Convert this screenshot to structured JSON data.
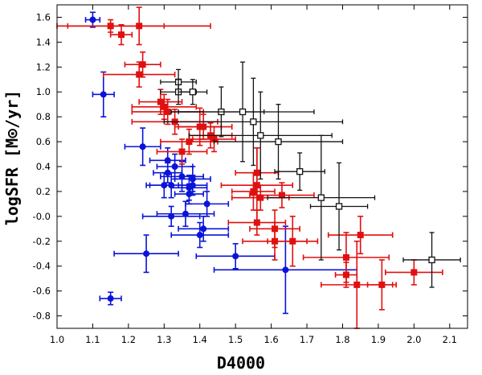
{
  "chart_data": {
    "type": "scatter",
    "xlabel": "D4000",
    "ylabel": "logSFR [M⊙/yr]",
    "xlim": [
      1.0,
      2.15
    ],
    "ylim": [
      -0.9,
      1.7
    ],
    "xticks": [
      "1.0",
      "1.1",
      "1.2",
      "1.3",
      "1.4",
      "1.5",
      "1.6",
      "1.7",
      "1.8",
      "1.9",
      "2.0",
      "2.1"
    ],
    "yticks": [
      "1.6",
      "1.4",
      "1.2",
      "1.0",
      "0.8",
      "0.6",
      "0.4",
      "0.2",
      "-0.0",
      "-0.2",
      "-0.4",
      "-0.6",
      "-0.8"
    ],
    "grid": false,
    "series": [
      {
        "color": "#0a14d8",
        "marker": "circle",
        "points": [
          {
            "x": 1.1,
            "y": 1.58,
            "xerr": 0.02,
            "yerr": 0.06
          },
          {
            "x": 1.13,
            "y": 0.98,
            "xerr": 0.03,
            "yerr": 0.18
          },
          {
            "x": 1.24,
            "y": 0.56,
            "xerr": 0.05,
            "yerr": 0.15
          },
          {
            "x": 1.3,
            "y": 0.25,
            "xerr": 0.05,
            "yerr": 0.1
          },
          {
            "x": 1.31,
            "y": 0.45,
            "xerr": 0.05,
            "yerr": 0.1
          },
          {
            "x": 1.31,
            "y": 0.35,
            "xerr": 0.04,
            "yerr": 0.08
          },
          {
            "x": 1.33,
            "y": 0.4,
            "xerr": 0.05,
            "yerr": 0.1
          },
          {
            "x": 1.32,
            "y": 0.25,
            "xerr": 0.06,
            "yerr": 0.1
          },
          {
            "x": 1.35,
            "y": 0.32,
            "xerr": 0.06,
            "yerr": 0.12
          },
          {
            "x": 1.37,
            "y": 0.23,
            "xerr": 0.05,
            "yerr": 0.1
          },
          {
            "x": 1.38,
            "y": 0.3,
            "xerr": 0.05,
            "yerr": 0.1
          },
          {
            "x": 1.38,
            "y": 0.25,
            "xerr": 0.04,
            "yerr": 0.08
          },
          {
            "x": 1.37,
            "y": 0.18,
            "xerr": 0.04,
            "yerr": 0.08
          },
          {
            "x": 1.32,
            "y": 0.0,
            "xerr": 0.08,
            "yerr": 0.08
          },
          {
            "x": 1.36,
            "y": 0.02,
            "xerr": 0.08,
            "yerr": 0.1
          },
          {
            "x": 1.42,
            "y": 0.1,
            "xerr": 0.06,
            "yerr": 0.1
          },
          {
            "x": 1.41,
            "y": -0.1,
            "xerr": 0.07,
            "yerr": 0.1
          },
          {
            "x": 1.4,
            "y": -0.15,
            "xerr": 0.08,
            "yerr": 0.1
          },
          {
            "x": 1.25,
            "y": -0.3,
            "xerr": 0.09,
            "yerr": 0.15
          },
          {
            "x": 1.5,
            "y": -0.32,
            "xerr": 0.11,
            "yerr": 0.1
          },
          {
            "x": 1.64,
            "y": -0.43,
            "xerr": 0.2,
            "yerr": 0.35
          },
          {
            "x": 1.15,
            "y": -0.66,
            "xerr": 0.03,
            "yerr": 0.05
          }
        ]
      },
      {
        "color": "#e01010",
        "marker": "square",
        "points": [
          {
            "x": 1.15,
            "y": 1.53,
            "xerr": 0.15,
            "yerr": 0.05
          },
          {
            "x": 1.18,
            "y": 1.46,
            "xerr": 0.03,
            "yerr": 0.08
          },
          {
            "x": 1.23,
            "y": 1.53,
            "xerr": 0.2,
            "yerr": 0.15
          },
          {
            "x": 1.24,
            "y": 1.22,
            "xerr": 0.05,
            "yerr": 0.1
          },
          {
            "x": 1.23,
            "y": 1.14,
            "xerr": 0.1,
            "yerr": 0.1
          },
          {
            "x": 1.29,
            "y": 0.92,
            "xerr": 0.06,
            "yerr": 0.1
          },
          {
            "x": 1.3,
            "y": 0.88,
            "xerr": 0.09,
            "yerr": 0.1
          },
          {
            "x": 1.31,
            "y": 0.84,
            "xerr": 0.1,
            "yerr": 0.1
          },
          {
            "x": 1.33,
            "y": 0.76,
            "xerr": 0.12,
            "yerr": 0.1
          },
          {
            "x": 1.4,
            "y": 0.72,
            "xerr": 0.06,
            "yerr": 0.15
          },
          {
            "x": 1.41,
            "y": 0.72,
            "xerr": 0.08,
            "yerr": 0.1
          },
          {
            "x": 1.37,
            "y": 0.6,
            "xerr": 0.08,
            "yerr": 0.1
          },
          {
            "x": 1.35,
            "y": 0.52,
            "xerr": 0.07,
            "yerr": 0.1
          },
          {
            "x": 1.43,
            "y": 0.65,
            "xerr": 0.06,
            "yerr": 0.1
          },
          {
            "x": 1.44,
            "y": 0.62,
            "xerr": 0.06,
            "yerr": 0.1
          },
          {
            "x": 1.56,
            "y": 0.35,
            "xerr": 0.06,
            "yerr": 0.2
          },
          {
            "x": 1.56,
            "y": 0.25,
            "xerr": 0.1,
            "yerr": 0.3
          },
          {
            "x": 1.55,
            "y": 0.2,
            "xerr": 0.06,
            "yerr": 0.15
          },
          {
            "x": 1.57,
            "y": 0.15,
            "xerr": 0.08,
            "yerr": 0.1
          },
          {
            "x": 1.63,
            "y": 0.17,
            "xerr": 0.09,
            "yerr": 0.1
          },
          {
            "x": 1.56,
            "y": -0.05,
            "xerr": 0.08,
            "yerr": 0.1
          },
          {
            "x": 1.61,
            "y": -0.1,
            "xerr": 0.07,
            "yerr": 0.15
          },
          {
            "x": 1.61,
            "y": -0.2,
            "xerr": 0.09,
            "yerr": 0.15
          },
          {
            "x": 1.66,
            "y": -0.2,
            "xerr": 0.07,
            "yerr": 0.2
          },
          {
            "x": 1.85,
            "y": -0.15,
            "xerr": 0.09,
            "yerr": 0.15
          },
          {
            "x": 1.81,
            "y": -0.33,
            "xerr": 0.12,
            "yerr": 0.2
          },
          {
            "x": 1.81,
            "y": -0.47,
            "xerr": 0.03,
            "yerr": 0.1
          },
          {
            "x": 1.84,
            "y": -0.55,
            "xerr": 0.1,
            "yerr": 0.35
          },
          {
            "x": 1.91,
            "y": -0.55,
            "xerr": 0.04,
            "yerr": 0.2
          },
          {
            "x": 2.0,
            "y": -0.45,
            "xerr": 0.08,
            "yerr": 0.1
          }
        ]
      },
      {
        "color": "#111111",
        "marker": "open-square",
        "points": [
          {
            "x": 1.34,
            "y": 1.08,
            "xerr": 0.05,
            "yerr": 0.1
          },
          {
            "x": 1.34,
            "y": 1.0,
            "xerr": 0.05,
            "yerr": 0.1
          },
          {
            "x": 1.38,
            "y": 1.0,
            "xerr": 0.04,
            "yerr": 0.1
          },
          {
            "x": 1.46,
            "y": 0.84,
            "xerr": 0.12,
            "yerr": 0.2
          },
          {
            "x": 1.52,
            "y": 0.84,
            "xerr": 0.2,
            "yerr": 0.4
          },
          {
            "x": 1.55,
            "y": 0.76,
            "xerr": 0.25,
            "yerr": 0.35
          },
          {
            "x": 1.57,
            "y": 0.65,
            "xerr": 0.2,
            "yerr": 0.35
          },
          {
            "x": 1.62,
            "y": 0.6,
            "xerr": 0.18,
            "yerr": 0.3
          },
          {
            "x": 1.68,
            "y": 0.36,
            "xerr": 0.07,
            "yerr": 0.15
          },
          {
            "x": 1.74,
            "y": 0.15,
            "xerr": 0.15,
            "yerr": 0.5
          },
          {
            "x": 1.79,
            "y": 0.08,
            "xerr": 0.08,
            "yerr": 0.35
          },
          {
            "x": 2.05,
            "y": -0.35,
            "xerr": 0.08,
            "yerr": 0.22
          }
        ]
      }
    ]
  }
}
